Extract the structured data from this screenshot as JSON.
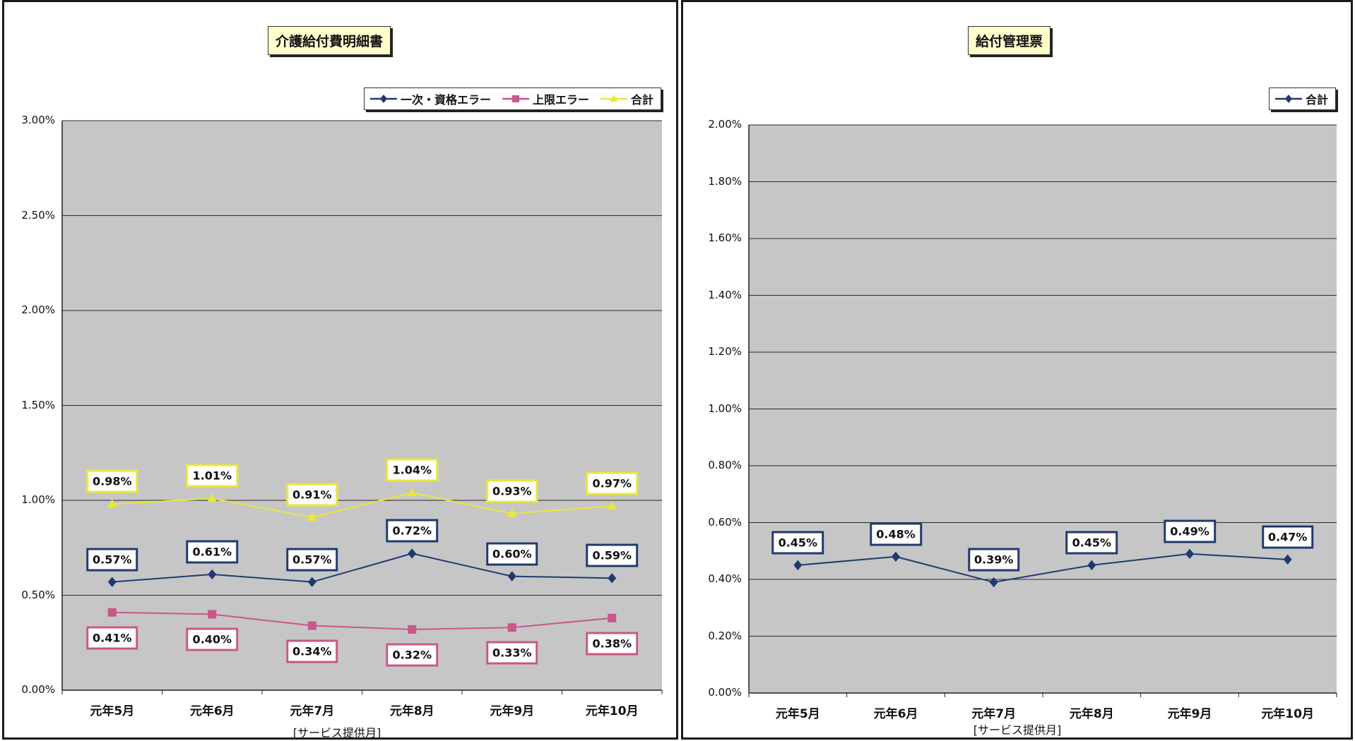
{
  "chart_data": [
    {
      "type": "line",
      "title": "介護給付費明細書",
      "xlabel": "[サービス提供月]",
      "ylabel": "",
      "categories": [
        "元年5月",
        "元年6月",
        "元年7月",
        "元年8月",
        "元年9月",
        "元年10月"
      ],
      "ylim": [
        0,
        0.03
      ],
      "y_ticks": [
        "0.00%",
        "0.50%",
        "1.00%",
        "1.50%",
        "2.00%",
        "2.50%",
        "3.00%"
      ],
      "grid": true,
      "legend_position": "top-right",
      "series": [
        {
          "name": "一次・資格エラー",
          "color": "#1f3a6e",
          "marker": "diamond",
          "values": [
            0.0057,
            0.0061,
            0.0057,
            0.0072,
            0.006,
            0.0059
          ],
          "labels": [
            "0.57%",
            "0.61%",
            "0.57%",
            "0.72%",
            "0.60%",
            "0.59%"
          ],
          "label_position": "above"
        },
        {
          "name": "上限エラー",
          "color": "#c8578a",
          "marker": "square",
          "values": [
            0.0041,
            0.004,
            0.0034,
            0.0032,
            0.0033,
            0.0038
          ],
          "labels": [
            "0.41%",
            "0.40%",
            "0.34%",
            "0.32%",
            "0.33%",
            "0.38%"
          ],
          "label_position": "below"
        },
        {
          "name": "合計",
          "color": "#e8e83a",
          "marker": "triangle",
          "values": [
            0.0098,
            0.0101,
            0.0091,
            0.0104,
            0.0093,
            0.0097
          ],
          "labels": [
            "0.98%",
            "1.01%",
            "0.91%",
            "1.04%",
            "0.93%",
            "0.97%"
          ],
          "label_position": "above"
        }
      ]
    },
    {
      "type": "line",
      "title": "給付管理票",
      "xlabel": "[サービス提供月]",
      "ylabel": "",
      "categories": [
        "元年5月",
        "元年6月",
        "元年7月",
        "元年8月",
        "元年9月",
        "元年10月"
      ],
      "ylim": [
        0,
        0.02
      ],
      "y_ticks": [
        "0.00%",
        "0.20%",
        "0.40%",
        "0.60%",
        "0.80%",
        "1.00%",
        "1.20%",
        "1.40%",
        "1.60%",
        "1.80%",
        "2.00%"
      ],
      "grid": true,
      "legend_position": "top-right",
      "series": [
        {
          "name": "合計",
          "color": "#1f3a6e",
          "marker": "diamond",
          "values": [
            0.0045,
            0.0048,
            0.0039,
            0.0045,
            0.0049,
            0.0047
          ],
          "labels": [
            "0.45%",
            "0.48%",
            "0.39%",
            "0.45%",
            "0.49%",
            "0.47%"
          ],
          "label_position": "above"
        }
      ]
    }
  ]
}
